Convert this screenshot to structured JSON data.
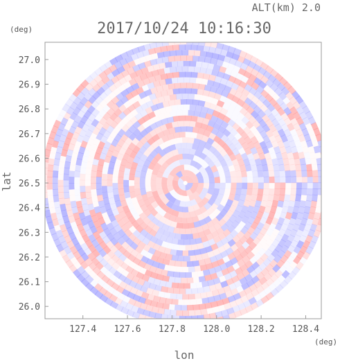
{
  "header": {
    "altitude_label": "ALT(km) 2.0",
    "timestamp": "2017/10/24 10:16:30"
  },
  "chart_data": {
    "type": "heatmap",
    "description_kind": "polar radar scan (PPI) at constant altitude",
    "title": "2017/10/24 10:16:30",
    "xlabel": "lon",
    "ylabel": "lat",
    "x_unit": "(deg)",
    "y_unit": "(deg)",
    "xlim": [
      127.23,
      128.47
    ],
    "ylim": [
      25.95,
      27.07
    ],
    "x_ticks": [
      "127.4",
      "127.6",
      "127.8",
      "128.0",
      "128.2",
      "128.4"
    ],
    "y_ticks": [
      "26.0",
      "26.1",
      "26.2",
      "26.3",
      "26.4",
      "26.5",
      "26.6",
      "26.7",
      "26.8",
      "26.9",
      "27.0"
    ],
    "center": {
      "lon": 127.86,
      "lat": 26.5
    },
    "colors": {
      "positive": "#ff9a9a",
      "negative": "#9a9aff",
      "zero": "#ffffff"
    },
    "grid": false
  }
}
